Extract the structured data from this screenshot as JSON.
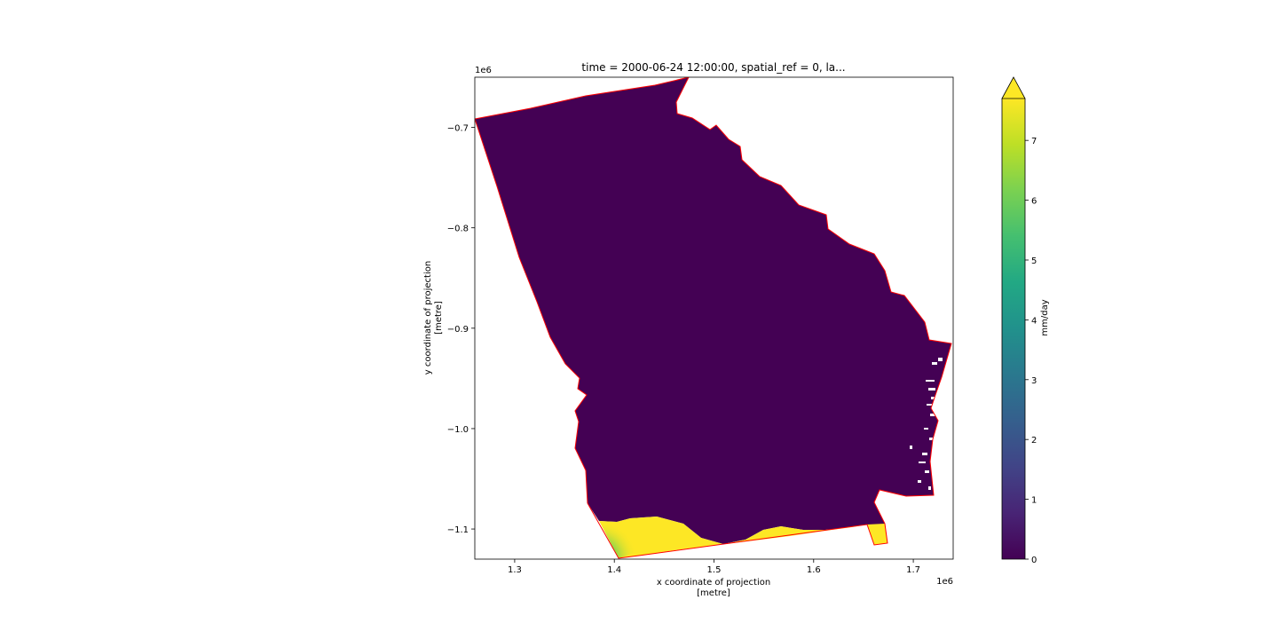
{
  "chart_data": {
    "type": "heatmap",
    "title": "time = 2000-06-24 12:00:00, spatial_ref = 0, la...",
    "xlabel": [
      "x coordinate of projection",
      "[metre]"
    ],
    "ylabel": [
      "y coordinate of projection",
      "[metre]"
    ],
    "x_offset_label": "1e6",
    "y_offset_label": "1e6",
    "xlim": [
      1.26,
      1.74
    ],
    "ylim": [
      -1.13,
      -0.65
    ],
    "xticks": [
      1.3,
      1.4,
      1.5,
      1.6,
      1.7
    ],
    "xtick_labels": [
      "1.3",
      "1.4",
      "1.5",
      "1.6",
      "1.7"
    ],
    "yticks": [
      -0.7,
      -0.8,
      -0.9,
      -1.0,
      -1.1
    ],
    "ytick_labels": [
      "−0.7",
      "−0.8",
      "−0.9",
      "−1.0",
      "−1.1"
    ],
    "colorbar": {
      "label": "mm/day",
      "colormap": "viridis",
      "range": [
        0,
        7.7
      ],
      "extend": "max",
      "ticks": [
        0,
        1,
        2,
        3,
        4,
        5,
        6,
        7
      ],
      "tick_labels": [
        "0",
        "1",
        "2",
        "3",
        "4",
        "5",
        "6",
        "7"
      ]
    },
    "outline_color": "#ff0000",
    "fill_colors": {
      "low": "#440154",
      "high": "#fde725",
      "mid_green": "#7ad151"
    },
    "region_values": {
      "interior": 0,
      "southern_band": 7.7,
      "southwest_corner": 6
    },
    "grid": false
  }
}
